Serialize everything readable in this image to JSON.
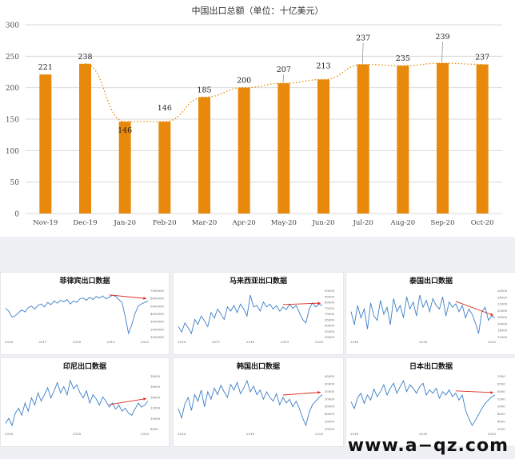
{
  "main_chart": {
    "title": "中国出口总额（单位：十亿美元）",
    "bar_color": "#E8890C",
    "trend_color": "#E8890C",
    "chart_data": {
      "type": "bar",
      "categories": [
        "Nov-19",
        "Dec-19",
        "Jan-20",
        "Feb-20",
        "Mar-20",
        "Apr-20",
        "May-20",
        "Jun-20",
        "Jul-20",
        "Aug-20",
        "Sep-20",
        "Oct-20"
      ],
      "values": [
        221,
        238,
        146,
        146,
        185,
        200,
        207,
        213,
        237,
        235,
        239,
        237
      ],
      "ylim": [
        0,
        300
      ],
      "yticks": [
        0,
        50,
        100,
        150,
        200,
        250,
        300
      ],
      "grid": true,
      "trendline": "dotted"
    }
  },
  "small_charts": [
    {
      "title": "菲律宾出口数据",
      "line_color": "#3d7fc7",
      "arrow_color": "#d9291c",
      "x_ticks": [
        "2016",
        "2017",
        "2018",
        "2019",
        "2020"
      ],
      "y_ticks": [
        "7000000",
        "6000000",
        "5000000",
        "4000000",
        "3000000",
        "2000000",
        "1000000"
      ],
      "series": [
        52,
        48,
        40,
        42,
        46,
        50,
        47,
        53,
        55,
        51,
        56,
        58,
        54,
        60,
        57,
        62,
        59,
        63,
        61,
        64,
        58,
        62,
        60,
        65,
        66,
        63,
        67,
        64,
        68,
        66,
        69,
        65,
        67,
        70,
        68,
        64,
        60,
        40,
        18,
        30,
        45,
        55,
        58,
        60,
        62
      ]
    },
    {
      "title": "马来西亚出口数据",
      "line_color": "#3d7fc7",
      "arrow_color": "#d9291c",
      "x_ticks": [
        "2016",
        "2017",
        "2018",
        "2019",
        "2020"
      ],
      "y_ticks": [
        "90000",
        "85000",
        "80000",
        "75000",
        "70000",
        "65000",
        "60000",
        "55000",
        "50000"
      ],
      "series": [
        30,
        22,
        35,
        28,
        20,
        40,
        33,
        45,
        38,
        30,
        50,
        42,
        55,
        48,
        40,
        58,
        52,
        60,
        50,
        62,
        55,
        45,
        75,
        58,
        60,
        52,
        65,
        58,
        62,
        55,
        60,
        52,
        58,
        54,
        62,
        56,
        60,
        50,
        40,
        35,
        55,
        64,
        58,
        62,
        60
      ]
    },
    {
      "title": "泰国出口数据",
      "line_color": "#3d7fc7",
      "arrow_color": "#d9291c",
      "x_ticks": [
        "2016",
        "2018",
        "2020"
      ],
      "y_ticks": [
        "26000",
        "24000",
        "22000",
        "20000",
        "18000",
        "16000",
        "14000",
        "12000"
      ],
      "series": [
        55,
        40,
        62,
        48,
        58,
        35,
        65,
        50,
        45,
        68,
        52,
        60,
        40,
        70,
        55,
        62,
        48,
        72,
        58,
        66,
        50,
        74,
        60,
        68,
        55,
        70,
        62,
        58,
        72,
        50,
        66,
        60,
        64,
        55,
        62,
        48,
        58,
        52,
        42,
        30,
        55,
        60,
        45,
        50,
        48
      ]
    },
    {
      "title": "印尼出口数据",
      "line_color": "#3d7fc7",
      "arrow_color": "#d9291c",
      "x_ticks": [
        "2016",
        "2018",
        "2020"
      ],
      "y_ticks": [
        "18000",
        "16000",
        "14000",
        "12000",
        "10000",
        "8000"
      ],
      "series": [
        30,
        35,
        28,
        40,
        45,
        38,
        50,
        42,
        55,
        48,
        60,
        52,
        58,
        65,
        55,
        62,
        70,
        60,
        66,
        58,
        72,
        64,
        68,
        60,
        55,
        62,
        50,
        58,
        54,
        48,
        56,
        52,
        46,
        50,
        44,
        48,
        42,
        45,
        40,
        38,
        44,
        50,
        46,
        48,
        52
      ]
    },
    {
      "title": "韩国出口数据",
      "line_color": "#3d7fc7",
      "arrow_color": "#d9291c",
      "x_ticks": [
        "2016",
        "2018",
        "2020"
      ],
      "y_ticks": [
        "65000",
        "60000",
        "55000",
        "50000",
        "45000",
        "40000",
        "35000",
        "30000"
      ],
      "series": [
        40,
        30,
        45,
        52,
        38,
        55,
        48,
        60,
        42,
        58,
        50,
        62,
        55,
        65,
        58,
        52,
        66,
        60,
        68,
        56,
        62,
        70,
        58,
        64,
        55,
        60,
        50,
        58,
        52,
        48,
        56,
        44,
        52,
        46,
        50,
        42,
        48,
        40,
        30,
        22,
        36,
        44,
        48,
        52,
        55
      ]
    },
    {
      "title": "日本出口数据",
      "line_color": "#3d7fc7",
      "arrow_color": "#d9291c",
      "x_ticks": [
        "2016",
        "2018",
        "2020"
      ],
      "y_ticks": [
        "7000",
        "6500",
        "6000",
        "5500",
        "5000",
        "4500",
        "4000",
        "3500"
      ],
      "series": [
        50,
        42,
        55,
        60,
        48,
        58,
        52,
        65,
        56,
        62,
        70,
        58,
        66,
        72,
        60,
        68,
        75,
        62,
        70,
        66,
        60,
        68,
        72,
        58,
        64,
        60,
        66,
        54,
        62,
        58,
        64,
        56,
        60,
        52,
        58,
        40,
        30,
        22,
        28,
        35,
        42,
        48,
        52,
        56,
        58
      ]
    }
  ],
  "watermark": "www.a−qz.com"
}
